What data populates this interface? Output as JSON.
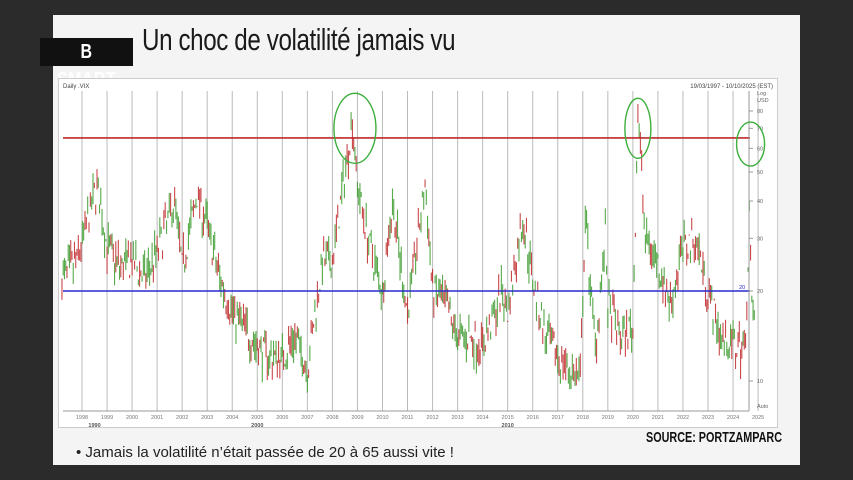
{
  "slide": {
    "title": "Un choc de volatilité jamais vu",
    "logo": "B SMART",
    "source": "SOURCE: PORTZAMPARC",
    "bullet": "• Jamais la volatilité n’était passée de 20 à 65 aussi vite !"
  },
  "chart_data": {
    "type": "line",
    "title": "Daily .VIX",
    "date_range": "19/03/1997 - 10/10/2025 (EST)",
    "y_axis": {
      "scale": "log",
      "labels": [
        "Log",
        "USD"
      ],
      "ticks": [
        10,
        20,
        30,
        40,
        50,
        60,
        70,
        80
      ],
      "ylim": [
        8.5,
        90
      ],
      "footer": "Auto"
    },
    "x_axis": {
      "ticks": [
        "1998",
        "1999",
        "2000",
        "2001",
        "2002",
        "2003",
        "2004",
        "2005",
        "2006",
        "2007",
        "2008",
        "2009",
        "2010",
        "2011",
        "2012",
        "2013",
        "2014",
        "2015",
        "2016",
        "2017",
        "2018",
        "2019",
        "2020",
        "2021",
        "2022",
        "2023",
        "2024",
        "2025"
      ],
      "eras": [
        "1990",
        "2000",
        "2010"
      ]
    },
    "reference_lines": [
      {
        "value": 65,
        "color": "#c0282a"
      },
      {
        "value": 20,
        "color": "#2a2ad0",
        "label": "20"
      }
    ],
    "highlight_circles": [
      {
        "x": 2008.9,
        "y": 70
      },
      {
        "x": 2020.2,
        "y": 70
      },
      {
        "x": 2024.7,
        "y": 62
      }
    ],
    "colors": {
      "up": "#3a9a2a",
      "down": "#c0282a",
      "circle": "#3cae3c"
    },
    "series": [
      {
        "x": [
          1997.2,
          1997.8,
          1998.6,
          1999.0,
          1999.5,
          2000.0,
          2000.5,
          2001.0,
          2001.7,
          2002.0,
          2002.6,
          2003.0,
          2003.5,
          2004.0,
          2004.5,
          2005.0,
          2005.5,
          2006.0,
          2006.5,
          2007.0,
          2007.6,
          2008.0,
          2008.8,
          2009.0,
          2009.5,
          2010.0,
          2010.4,
          2010.8,
          2011.0,
          2011.7,
          2012.0,
          2012.5,
          2013.0,
          2013.5,
          2014.0,
          2014.8,
          2015.0,
          2015.6,
          2016.0,
          2016.5,
          2017.0,
          2017.9,
          2018.1,
          2018.5,
          2018.9,
          2019.0,
          2019.5,
          2020.0,
          2020.2,
          2020.5,
          2021.0,
          2021.5,
          2022.0,
          2022.5,
          2023.0,
          2023.5,
          2024.0,
          2024.5,
          2024.65,
          2024.75,
          2024.9
        ],
        "y": [
          22,
          25,
          45,
          28,
          24,
          25,
          22,
          27,
          40,
          24,
          42,
          33,
          22,
          17,
          15,
          13,
          12,
          12,
          14,
          11,
          25,
          25,
          75,
          45,
          28,
          20,
          40,
          22,
          17,
          45,
          20,
          18,
          14,
          14,
          13,
          20,
          17,
          35,
          22,
          14,
          12,
          10,
          35,
          13,
          30,
          18,
          14,
          15,
          80,
          30,
          25,
          18,
          28,
          30,
          20,
          14,
          13,
          13,
          38,
          17,
          16
        ]
      }
    ]
  }
}
